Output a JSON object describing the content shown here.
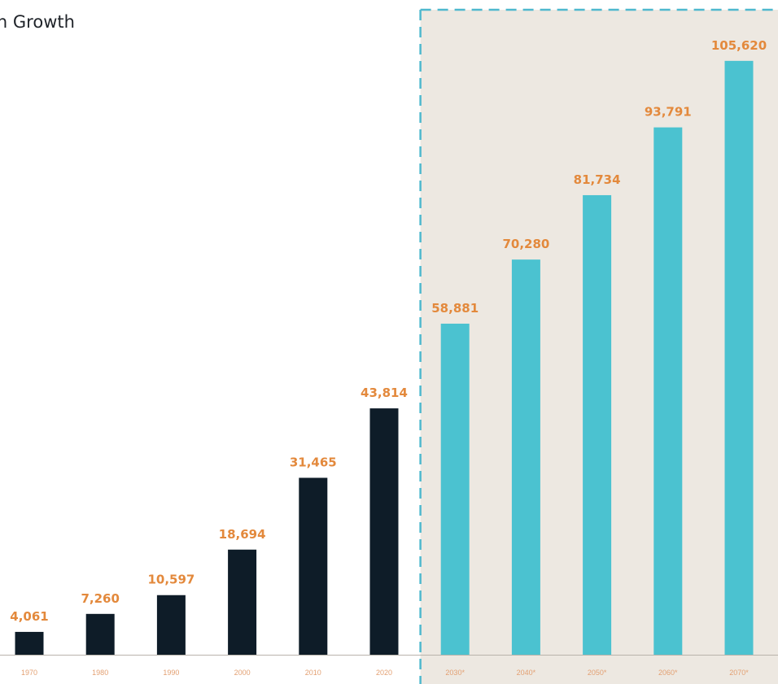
{
  "chart_data": {
    "type": "bar",
    "title": "tion Growth",
    "categories": [
      "1970",
      "1980",
      "1990",
      "2000",
      "2010",
      "2020",
      "2030*",
      "2040*",
      "2050*",
      "2060*",
      "2070*"
    ],
    "values": [
      4061,
      7260,
      10597,
      18694,
      31465,
      43814,
      58881,
      70280,
      81734,
      93791,
      105620
    ],
    "value_labels": [
      "4,061",
      "7,260",
      "10,597",
      "18,694",
      "31,465",
      "43,814",
      "58,881",
      "70,280",
      "81,734",
      "93,791",
      "105,620"
    ],
    "projected": [
      false,
      false,
      false,
      false,
      false,
      false,
      true,
      true,
      true,
      true,
      true
    ],
    "xlabel": "",
    "ylabel": "",
    "ylim": [
      0,
      115000
    ],
    "grid": false,
    "legend": "none",
    "colors": {
      "historical": "#0e1c28",
      "projected": "#4bc2d0",
      "value_label": "#e3893c",
      "tick_label": "#e3a072",
      "projection_panel": "#ede8e1",
      "projection_border": "#4fb8ce",
      "axis": "#b9b3ab"
    }
  }
}
